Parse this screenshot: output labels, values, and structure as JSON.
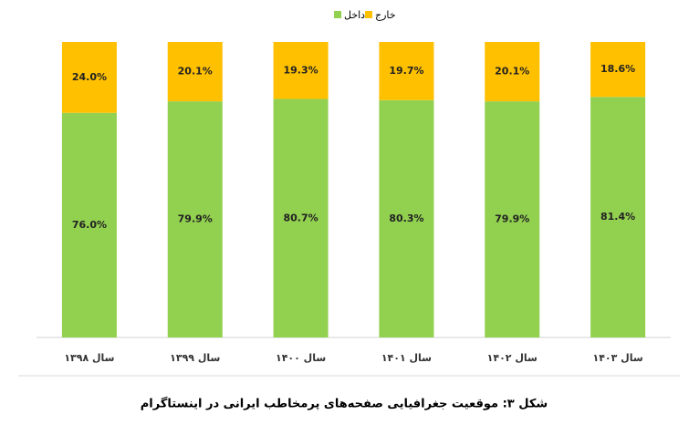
{
  "chart_data": {
    "type": "stacked_bar",
    "title": "شکل ۳: موقعیت جغرافیایی صفحه‌های پرمخاطب ایرانی در اینستاگرام",
    "categories": [
      "سال ۱۳۹۸",
      "سال ۱۳۹۹",
      "سال ۱۴۰۰",
      "سال ۱۴۰۱",
      "سال ۱۴۰۲",
      "سال ۱۴۰۳"
    ],
    "series": [
      {
        "name": "داخل",
        "color": "#92d050",
        "values": [
          76.0,
          79.9,
          80.7,
          80.3,
          79.9,
          81.4
        ],
        "value_labels": [
          "76.0%",
          "79.9%",
          "80.7%",
          "80.3%",
          "79.9%",
          "81.4%"
        ]
      },
      {
        "name": "خارج",
        "color": "#ffc000",
        "values": [
          24.0,
          20.1,
          19.3,
          19.7,
          20.1,
          18.6
        ],
        "value_labels": [
          "24.0%",
          "20.1%",
          "19.3%",
          "19.7%",
          "20.1%",
          "18.6%"
        ]
      }
    ],
    "ylim": [
      0,
      100
    ],
    "legend": "top"
  }
}
